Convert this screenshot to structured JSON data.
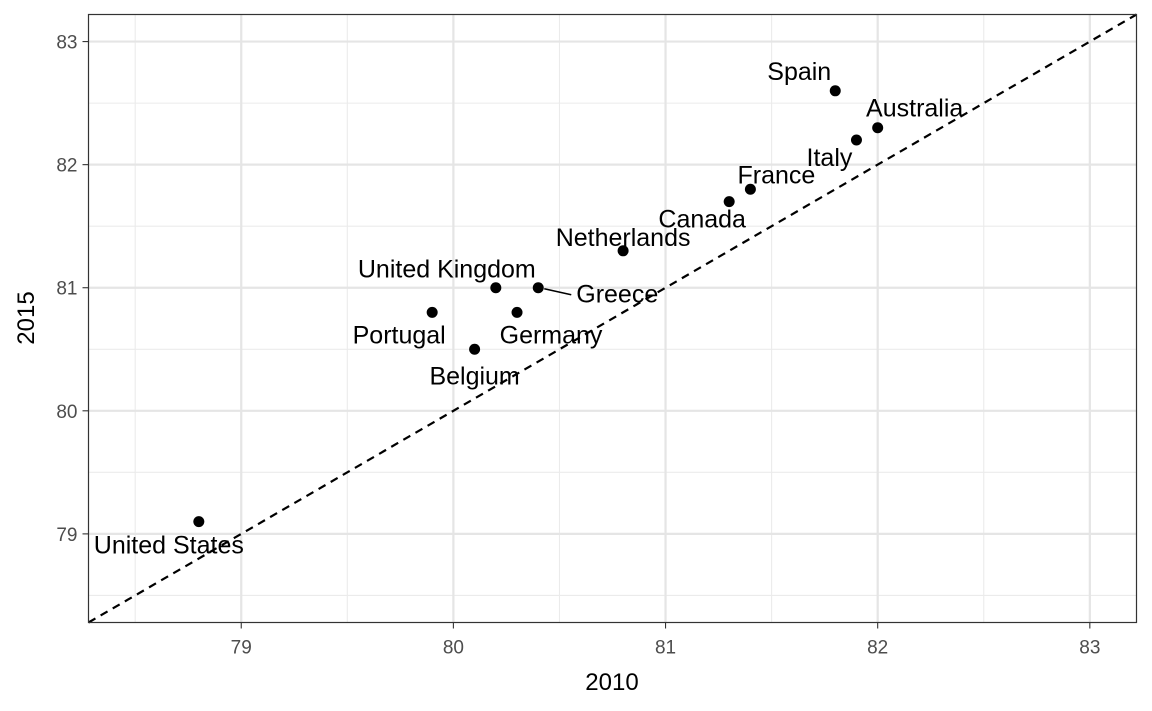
{
  "chart_data": {
    "type": "scatter",
    "title": "",
    "xlabel": "2010",
    "ylabel": "2015",
    "xlim": [
      78.28,
      83.22
    ],
    "ylim": [
      78.28,
      83.22
    ],
    "x_ticks": [
      "79",
      "80",
      "81",
      "82",
      "83"
    ],
    "y_ticks": [
      "79",
      "80",
      "81",
      "82",
      "83"
    ],
    "grid": true,
    "reference_line": {
      "type": "identity",
      "style": "dashed"
    },
    "points": [
      {
        "label": "United States",
        "x": 78.8,
        "y": 79.1
      },
      {
        "label": "Portugal",
        "x": 79.9,
        "y": 80.8
      },
      {
        "label": "Belgium",
        "x": 80.1,
        "y": 80.5
      },
      {
        "label": "United Kingdom",
        "x": 80.2,
        "y": 81.0
      },
      {
        "label": "Germany",
        "x": 80.3,
        "y": 80.8
      },
      {
        "label": "Greece",
        "x": 80.4,
        "y": 81.0
      },
      {
        "label": "Netherlands",
        "x": 80.8,
        "y": 81.3
      },
      {
        "label": "Canada",
        "x": 81.3,
        "y": 81.7
      },
      {
        "label": "France",
        "x": 81.4,
        "y": 81.8
      },
      {
        "label": "Spain",
        "x": 81.8,
        "y": 82.6
      },
      {
        "label": "Italy",
        "x": 81.9,
        "y": 82.2
      },
      {
        "label": "Australia",
        "x": 82.0,
        "y": 82.3
      }
    ]
  }
}
